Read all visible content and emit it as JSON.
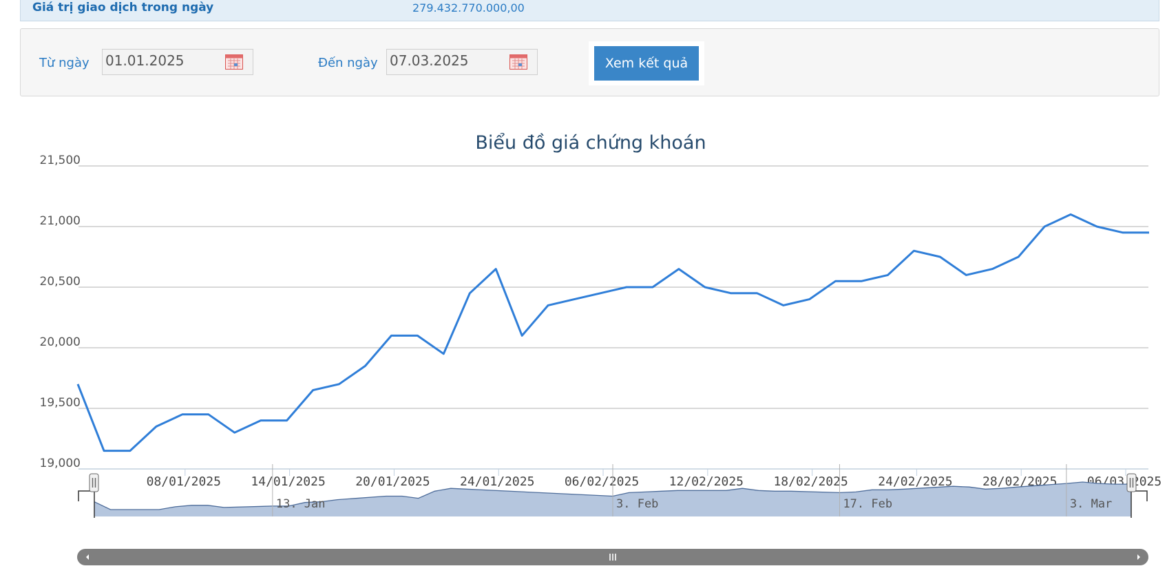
{
  "info": {
    "label": "Giá trị giao dịch trong ngày",
    "value": "279.432.770.000,00"
  },
  "filter": {
    "from_label": "Từ ngày",
    "from_value": "01.01.2025",
    "to_label": "Đến ngày",
    "to_value": "07.03.2025",
    "submit_label": "Xem kết quả"
  },
  "icons": {
    "calendar": "calendar-icon",
    "nav_left": "arrow-left-icon",
    "nav_right": "arrow-right-icon",
    "grip": "grip-icon"
  },
  "colors": {
    "line": "#2f7ed8",
    "grid": "#c0c0c0",
    "navigator_fill": "#b5c6de",
    "navigator_line": "#4d6c9a",
    "scrollbar": "#7f7f7f",
    "button": "#3a86c8"
  },
  "chart_data": {
    "type": "line",
    "title": "Biểu đồ giá chứng khoán",
    "xlabel": "",
    "ylabel": "",
    "ylim": [
      19000,
      21500
    ],
    "yticks": [
      "19,000",
      "19,500",
      "20,000",
      "20,500",
      "21,000",
      "21,500"
    ],
    "xticks": [
      "08/01/2025",
      "14/01/2025",
      "20/01/2025",
      "24/01/2025",
      "06/02/2025",
      "12/02/2025",
      "18/02/2025",
      "24/02/2025",
      "28/02/2025",
      "06/03/2025"
    ],
    "grid": true,
    "legend": "none",
    "series": [
      {
        "x": [
          "02/01/2025",
          "03/01/2025",
          "06/01/2025",
          "07/01/2025",
          "08/01/2025",
          "09/01/2025",
          "10/01/2025",
          "13/01/2025",
          "14/01/2025",
          "15/01/2025",
          "16/01/2025",
          "17/01/2025",
          "20/01/2025",
          "21/01/2025",
          "22/01/2025",
          "23/01/2025",
          "24/01/2025",
          "03/02/2025",
          "04/02/2025",
          "05/02/2025",
          "06/02/2025",
          "07/02/2025",
          "10/02/2025",
          "11/02/2025",
          "12/02/2025",
          "13/02/2025",
          "14/02/2025",
          "17/02/2025",
          "18/02/2025",
          "19/02/2025",
          "20/02/2025",
          "21/02/2025",
          "24/02/2025",
          "25/02/2025",
          "26/02/2025",
          "27/02/2025",
          "28/02/2025",
          "03/03/2025",
          "04/03/2025",
          "05/03/2025",
          "06/03/2025",
          "07/03/2025"
        ],
        "values": [
          19700,
          19150,
          19150,
          19350,
          19450,
          19450,
          19300,
          19400,
          19400,
          19650,
          19700,
          19850,
          20100,
          20100,
          19950,
          20450,
          20650,
          20100,
          20350,
          20400,
          20450,
          20500,
          20500,
          20650,
          20500,
          20450,
          20450,
          20350,
          20400,
          20550,
          20550,
          20600,
          20800,
          20750,
          20600,
          20650,
          20750,
          21000,
          21100,
          21000,
          20950,
          20950
        ]
      }
    ],
    "navigator": {
      "labels": [
        "13. Jan",
        "3. Feb",
        "17. Feb",
        "3. Mar"
      ]
    }
  }
}
